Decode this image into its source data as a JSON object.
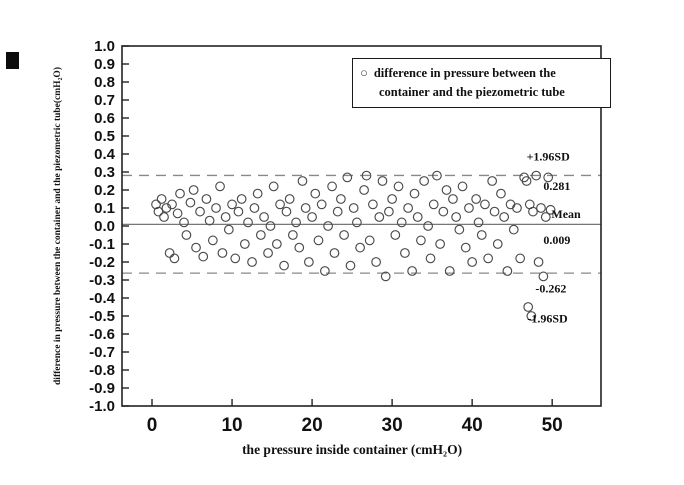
{
  "figure": {
    "background": "#ffffff",
    "frame_color": "#222222",
    "mean_line_color": "#777777",
    "loa_line_color": "#888888",
    "marker_color": "#4a4a4a"
  },
  "chart_data": {
    "type": "scatter",
    "title": "",
    "xlabel": "the pressure inside container  (cmH₂O)",
    "ylabel": "difference in pressure  between the container and the piezometric tube(cmH₂O)",
    "xlim": [
      -3.75,
      56.1
    ],
    "ylim": [
      -1.0,
      1.0
    ],
    "x_ticks": [
      0,
      10,
      20,
      30,
      40,
      50
    ],
    "y_ticks": [
      1.0,
      0.9,
      0.8,
      0.7,
      0.6,
      0.5,
      0.4,
      0.3,
      0.2,
      0.1,
      0.0,
      -0.1,
      -0.2,
      -0.3,
      -0.4,
      -0.5,
      -0.6,
      -0.7,
      -0.8,
      -0.9,
      -1.0
    ],
    "grid": false,
    "legend_position": "top-right",
    "mean": 0.009,
    "upper_loa": 0.281,
    "lower_loa": -0.262,
    "legend": {
      "marker": "open-circle",
      "lines": [
        "difference in pressure  between the",
        "container and the piezometric tube"
      ]
    },
    "annotations": [
      {
        "text": "+1.96SD",
        "x": 46.8,
        "y": 0.385
      },
      {
        "text": "0.281",
        "x": 48.9,
        "y": 0.223
      },
      {
        "text": "Mean",
        "x": 49.9,
        "y": 0.067
      },
      {
        "text": "0.009",
        "x": 48.9,
        "y": -0.078
      },
      {
        "text": "-0.262",
        "x": 47.9,
        "y": -0.346
      },
      {
        "text": "-1.96SD",
        "x": 46.9,
        "y": -0.514
      }
    ],
    "points": [
      [
        0.5,
        0.12
      ],
      [
        0.8,
        0.08
      ],
      [
        1.2,
        0.15
      ],
      [
        1.5,
        0.05
      ],
      [
        1.8,
        0.1
      ],
      [
        2.2,
        -0.15
      ],
      [
        2.5,
        0.12
      ],
      [
        2.8,
        -0.18
      ],
      [
        3.2,
        0.07
      ],
      [
        3.5,
        0.18
      ],
      [
        4,
        0.02
      ],
      [
        4.3,
        -0.05
      ],
      [
        4.8,
        0.13
      ],
      [
        5.2,
        0.2
      ],
      [
        5.5,
        -0.12
      ],
      [
        6,
        0.08
      ],
      [
        6.4,
        -0.17
      ],
      [
        6.8,
        0.15
      ],
      [
        7.2,
        0.03
      ],
      [
        7.6,
        -0.08
      ],
      [
        8,
        0.1
      ],
      [
        8.5,
        0.22
      ],
      [
        8.8,
        -0.15
      ],
      [
        9.2,
        0.05
      ],
      [
        9.6,
        -0.02
      ],
      [
        10,
        0.12
      ],
      [
        10.4,
        -0.18
      ],
      [
        10.8,
        0.08
      ],
      [
        11.2,
        0.15
      ],
      [
        11.6,
        -0.1
      ],
      [
        12,
        0.02
      ],
      [
        12.5,
        -0.2
      ],
      [
        12.8,
        0.1
      ],
      [
        13.2,
        0.18
      ],
      [
        13.6,
        -0.05
      ],
      [
        14,
        0.05
      ],
      [
        14.5,
        -0.15
      ],
      [
        14.8,
        0
      ],
      [
        15.2,
        0.22
      ],
      [
        15.6,
        -0.1
      ],
      [
        16,
        0.12
      ],
      [
        16.5,
        -0.22
      ],
      [
        16.8,
        0.08
      ],
      [
        17.2,
        0.15
      ],
      [
        17.6,
        -0.05
      ],
      [
        18,
        0.02
      ],
      [
        18.4,
        -0.12
      ],
      [
        18.8,
        0.25
      ],
      [
        19.2,
        0.1
      ],
      [
        19.6,
        -0.2
      ],
      [
        20,
        0.05
      ],
      [
        20.4,
        0.18
      ],
      [
        20.8,
        -0.08
      ],
      [
        21.2,
        0.12
      ],
      [
        21.6,
        -0.25
      ],
      [
        22,
        0
      ],
      [
        22.5,
        0.22
      ],
      [
        22.8,
        -0.15
      ],
      [
        23.2,
        0.08
      ],
      [
        23.6,
        0.15
      ],
      [
        24,
        -0.05
      ],
      [
        24.4,
        0.27
      ],
      [
        24.8,
        -0.22
      ],
      [
        25.2,
        0.1
      ],
      [
        25.6,
        0.02
      ],
      [
        26,
        -0.12
      ],
      [
        26.5,
        0.2
      ],
      [
        26.8,
        0.28
      ],
      [
        27.2,
        -0.08
      ],
      [
        27.6,
        0.12
      ],
      [
        28,
        -0.2
      ],
      [
        28.4,
        0.05
      ],
      [
        28.8,
        0.25
      ],
      [
        29.2,
        -0.28
      ],
      [
        29.6,
        0.08
      ],
      [
        30,
        0.15
      ],
      [
        30.4,
        -0.05
      ],
      [
        30.8,
        0.22
      ],
      [
        31.2,
        0.02
      ],
      [
        31.6,
        -0.15
      ],
      [
        32,
        0.1
      ],
      [
        32.5,
        -0.25
      ],
      [
        32.8,
        0.18
      ],
      [
        33.2,
        0.05
      ],
      [
        33.6,
        -0.08
      ],
      [
        34,
        0.25
      ],
      [
        34.5,
        0
      ],
      [
        34.8,
        -0.18
      ],
      [
        35.2,
        0.12
      ],
      [
        35.6,
        0.28
      ],
      [
        36,
        -0.1
      ],
      [
        36.4,
        0.08
      ],
      [
        36.8,
        0.2
      ],
      [
        37.2,
        -0.25
      ],
      [
        37.6,
        0.15
      ],
      [
        38,
        0.05
      ],
      [
        38.4,
        -0.02
      ],
      [
        38.8,
        0.22
      ],
      [
        39.2,
        -0.12
      ],
      [
        39.6,
        0.1
      ],
      [
        40,
        -0.2
      ],
      [
        40.5,
        0.15
      ],
      [
        40.8,
        0.02
      ],
      [
        41.2,
        -0.05
      ],
      [
        41.6,
        0.12
      ],
      [
        42,
        -0.18
      ],
      [
        42.5,
        0.25
      ],
      [
        42.8,
        0.08
      ],
      [
        43.2,
        -0.1
      ],
      [
        43.6,
        0.18
      ],
      [
        44,
        0.05
      ],
      [
        44.4,
        -0.25
      ],
      [
        44.8,
        0.12
      ],
      [
        45.2,
        -0.02
      ],
      [
        45.6,
        0.1
      ],
      [
        46,
        -0.18
      ],
      [
        46.5,
        0.27
      ],
      [
        46.8,
        0.25
      ],
      [
        47,
        -0.45
      ],
      [
        47.2,
        0.12
      ],
      [
        47.4,
        -0.5
      ],
      [
        47.6,
        0.08
      ],
      [
        48,
        0.28
      ],
      [
        48.3,
        -0.2
      ],
      [
        48.6,
        0.1
      ],
      [
        48.9,
        -0.28
      ],
      [
        49.2,
        0.05
      ],
      [
        49.5,
        0.27
      ],
      [
        49.8,
        0.09
      ]
    ]
  }
}
